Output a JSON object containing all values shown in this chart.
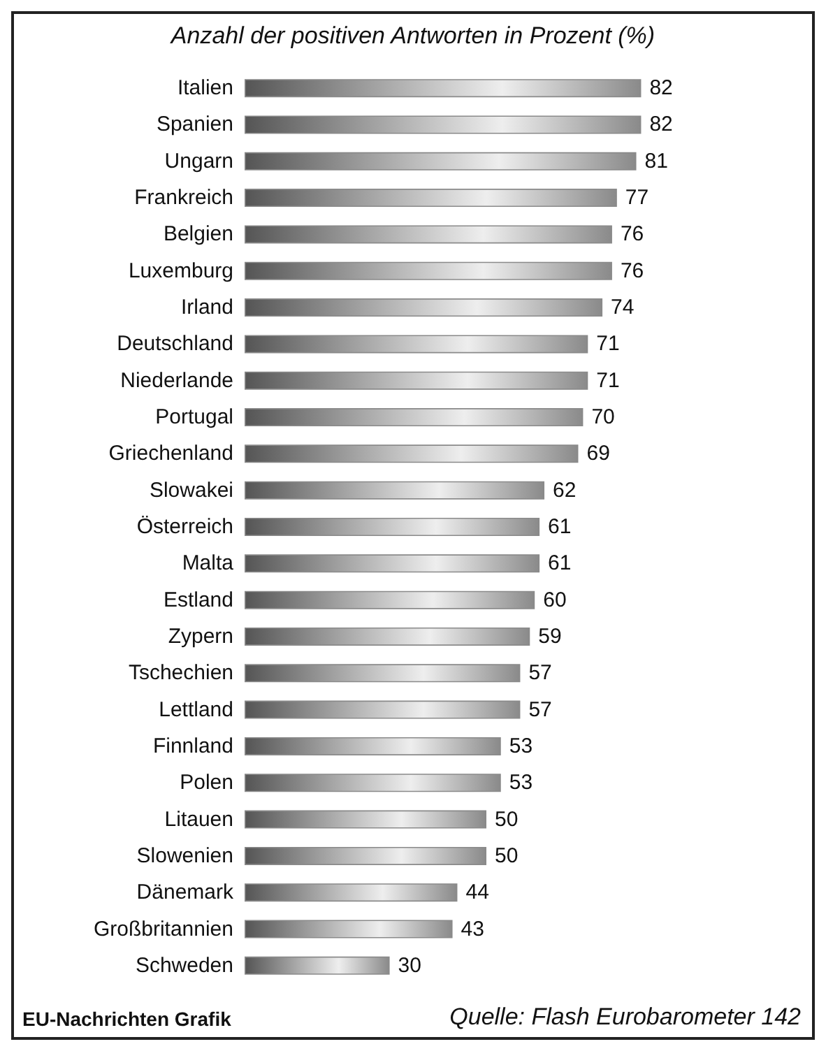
{
  "chart_data": {
    "type": "bar",
    "orientation": "horizontal",
    "subtitle": "Anzahl der positiven Antworten in Prozent (%)",
    "categories": [
      "Italien",
      "Spanien",
      "Ungarn",
      "Frankreich",
      "Belgien",
      "Luxemburg",
      "Irland",
      "Deutschland",
      "Niederlande",
      "Portugal",
      "Griechenland",
      "Slowakei",
      "Österreich",
      "Malta",
      "Estland",
      "Zypern",
      "Tschechien",
      "Lettland",
      "Finnland",
      "Polen",
      "Litauen",
      "Slowenien",
      "Dänemark",
      "Großbritannien",
      "Schweden"
    ],
    "values": [
      82,
      82,
      81,
      77,
      76,
      76,
      74,
      71,
      71,
      70,
      69,
      62,
      61,
      61,
      60,
      59,
      57,
      57,
      53,
      53,
      50,
      50,
      44,
      43,
      30
    ],
    "color": "#8a8a8a",
    "data_labels": true,
    "annotations": [
      "EU-Nachrichten Grafik",
      "Quelle: Flash Eurobarometer 142"
    ]
  }
}
